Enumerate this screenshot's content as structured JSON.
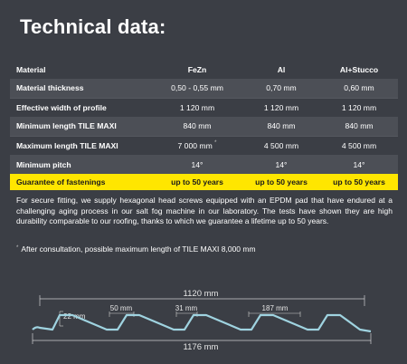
{
  "title": "Technical data:",
  "table": {
    "headers": [
      "Material",
      "FeZn",
      "Al",
      "Al+Stucco"
    ],
    "rows": [
      {
        "label": "Material thickness",
        "fezn": "0,50 - 0,55 mm",
        "al": "0,70 mm",
        "al_stucco": "0,60 mm"
      },
      {
        "label": "Effective width of profile",
        "fezn": "1 120 mm",
        "al": "1 120 mm",
        "al_stucco": "1 120 mm"
      },
      {
        "label": "Minimum length TILE MAXI",
        "fezn": "840 mm",
        "al": "840 mm",
        "al_stucco": "840 mm"
      },
      {
        "label": "Maximum length TILE MAXI",
        "fezn": "7 000 mm",
        "fezn_mark": "*",
        "al": "4 500 mm",
        "al_stucco": "4 500 mm"
      },
      {
        "label": "Minimum pitch",
        "fezn": "14°",
        "al": "14°",
        "al_stucco": "14°"
      }
    ],
    "highlight": {
      "label": "Guarantee of fastenings",
      "fezn": "up to 50 years",
      "al": "up to 50 years",
      "al_stucco": "up to 50 years"
    }
  },
  "notice": "For secure fitting, we supply hexagonal head screws equipped with an EPDM pad that have endured at a challenging aging process in our salt fog machine in our laboratory. The tests have shown they are high durability comparable to our roofing, thanks to which we guarantee a lifetime up to 50 years.",
  "footnote": {
    "mark": "*",
    "text": "After consultation, possible maximum length of TILE MAXI 8,000 mm"
  },
  "diagram": {
    "width_effective": "1120 mm",
    "width_total": "1176 mm",
    "height": "22 mm",
    "dim_a": "50 mm",
    "dim_b": "31 mm",
    "dim_c": "187 mm"
  },
  "colors": {
    "background": "#3b3e45",
    "highlight": "#ffe600",
    "profile": "#9fd3e0"
  }
}
